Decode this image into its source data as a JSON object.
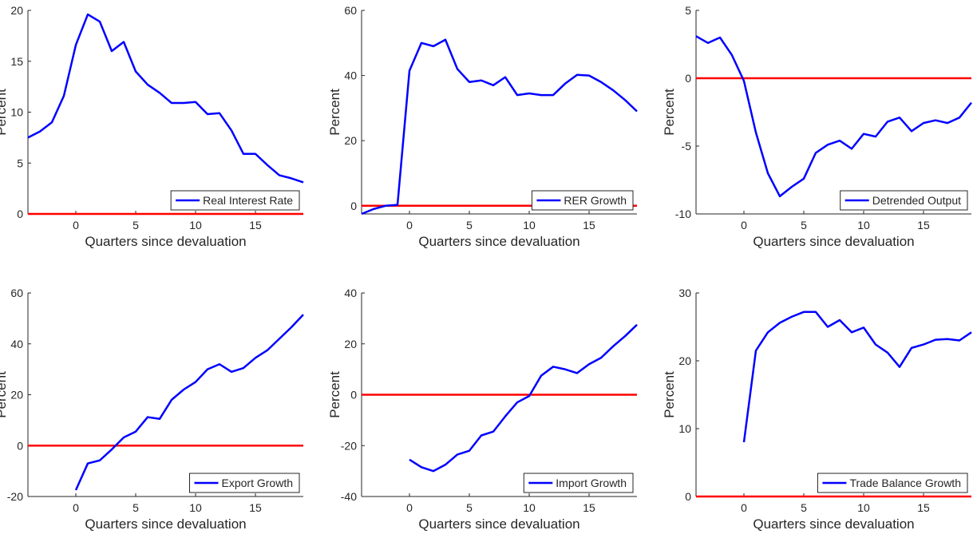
{
  "chart_data": [
    {
      "type": "line",
      "ylabel": "Percent",
      "xlabel": "Quarters since devaluation",
      "x": [
        -4,
        -3,
        -2,
        -1,
        0,
        1,
        2,
        3,
        4,
        5,
        6,
        7,
        8,
        9,
        10,
        11,
        12,
        13,
        14,
        15,
        16,
        17,
        18,
        19
      ],
      "series": [
        {
          "name": "Real Interest Rate",
          "color": "#0000ff",
          "values": [
            7.5,
            8.1,
            9.0,
            11.6,
            16.6,
            19.6,
            18.9,
            16.0,
            16.9,
            14.0,
            12.7,
            11.9,
            10.9,
            10.9,
            11.0,
            9.8,
            9.9,
            8.2,
            5.9,
            5.9,
            4.8,
            3.8,
            3.5,
            3.1
          ]
        }
      ],
      "reference_line": {
        "value": 0,
        "color": "#ff0000"
      },
      "xlim": [
        -4,
        19
      ],
      "xticks": [
        0,
        5,
        10,
        15
      ],
      "ylim": [
        0,
        20
      ],
      "yticks": [
        0,
        5,
        10,
        15,
        20
      ],
      "legend": "lower right"
    },
    {
      "type": "line",
      "ylabel": "Percent",
      "xlabel": "Quarters since devaluation",
      "x": [
        -4,
        -3,
        -2,
        -1,
        0,
        1,
        2,
        3,
        4,
        5,
        6,
        7,
        8,
        9,
        10,
        11,
        12,
        13,
        14,
        15,
        16,
        17,
        18,
        19
      ],
      "series": [
        {
          "name": "RER Growth",
          "color": "#0000ff",
          "values": [
            -2.5,
            -1,
            0,
            0.3,
            41.5,
            50,
            49,
            51,
            42,
            38,
            38.5,
            37,
            39.5,
            34,
            34.5,
            34,
            34,
            37.5,
            40.2,
            40,
            38,
            35.5,
            32.5,
            29
          ]
        }
      ],
      "reference_line": {
        "value": 0,
        "color": "#ff0000"
      },
      "xlim": [
        -4,
        19
      ],
      "xticks": [
        0,
        5,
        10,
        15
      ],
      "ylim": [
        -2.5,
        60
      ],
      "yticks": [
        0,
        20,
        40,
        60
      ],
      "legend": "lower right"
    },
    {
      "type": "line",
      "ylabel": "Percent",
      "xlabel": "Quarters since devaluation",
      "x": [
        -4,
        -3,
        -2,
        -1,
        0,
        1,
        2,
        3,
        4,
        5,
        6,
        7,
        8,
        9,
        10,
        11,
        12,
        13,
        14,
        15,
        16,
        17,
        18,
        19
      ],
      "series": [
        {
          "name": "Detrended Output",
          "color": "#0000ff",
          "values": [
            3.1,
            2.6,
            3.0,
            1.7,
            -0.2,
            -4,
            -7,
            -8.7,
            -8,
            -7.4,
            -5.5,
            -4.9,
            -4.6,
            -5.2,
            -4.1,
            -4.3,
            -3.2,
            -2.9,
            -3.9,
            -3.3,
            -3.1,
            -3.3,
            -2.9,
            -1.8
          ]
        }
      ],
      "reference_line": {
        "value": 0,
        "color": "#ff0000"
      },
      "xlim": [
        -4,
        19
      ],
      "xticks": [
        0,
        5,
        10,
        15
      ],
      "ylim": [
        -10,
        5
      ],
      "yticks": [
        -10,
        -5,
        0,
        5
      ],
      "legend": "lower right"
    },
    {
      "type": "line",
      "ylabel": "Percent",
      "xlabel": "Quarters since devaluation",
      "x": [
        0,
        1,
        2,
        3,
        4,
        5,
        6,
        7,
        8,
        9,
        10,
        11,
        12,
        13,
        14,
        15,
        16,
        17,
        18,
        19
      ],
      "series": [
        {
          "name": "Export Growth",
          "color": "#0000ff",
          "values": [
            -17.5,
            -7,
            -5.8,
            -1.5,
            3.2,
            5.5,
            11.2,
            10.5,
            18,
            22,
            25,
            30,
            32,
            29,
            30.5,
            34.5,
            37.5,
            42,
            46.5,
            51.5
          ]
        }
      ],
      "reference_line": {
        "value": 0,
        "color": "#ff0000"
      },
      "xlim": [
        -4,
        19
      ],
      "xticks": [
        0,
        5,
        10,
        15
      ],
      "ylim": [
        -20,
        60
      ],
      "yticks": [
        -20,
        0,
        20,
        40,
        60
      ],
      "legend": "lower right"
    },
    {
      "type": "line",
      "ylabel": "Percent",
      "xlabel": "Quarters since devaluation",
      "x": [
        0,
        1,
        2,
        3,
        4,
        5,
        6,
        7,
        8,
        9,
        10,
        11,
        12,
        13,
        14,
        15,
        16,
        17,
        18,
        19
      ],
      "series": [
        {
          "name": "Import Growth",
          "color": "#0000ff",
          "values": [
            -25.5,
            -28.5,
            -30,
            -27.5,
            -23.5,
            -22,
            -16,
            -14.5,
            -8.5,
            -3,
            -0.5,
            7.5,
            11,
            10,
            8.5,
            12,
            14.5,
            19,
            23,
            27.5
          ]
        }
      ],
      "reference_line": {
        "value": 0,
        "color": "#ff0000"
      },
      "xlim": [
        -4,
        19
      ],
      "xticks": [
        0,
        5,
        10,
        15
      ],
      "ylim": [
        -40,
        40
      ],
      "yticks": [
        -40,
        -20,
        0,
        20,
        40
      ],
      "legend": "lower right"
    },
    {
      "type": "line",
      "ylabel": "Percent",
      "xlabel": "Quarters since devaluation",
      "x": [
        0,
        1,
        2,
        3,
        4,
        5,
        6,
        7,
        8,
        9,
        10,
        11,
        12,
        13,
        14,
        15,
        16,
        17,
        18,
        19
      ],
      "series": [
        {
          "name": "Trade Balance Growth",
          "color": "#0000ff",
          "values": [
            8,
            21.5,
            24.2,
            25.6,
            26.5,
            27.2,
            27.2,
            25,
            26,
            24.2,
            24.9,
            22.4,
            21.2,
            19.1,
            21.9,
            22.4,
            23.1,
            23.2,
            23,
            24.2
          ]
        }
      ],
      "reference_line": {
        "value": 0,
        "color": "#ff0000"
      },
      "xlim": [
        -4,
        19
      ],
      "xticks": [
        0,
        5,
        10,
        15
      ],
      "ylim": [
        0,
        30
      ],
      "yticks": [
        0,
        10,
        20,
        30
      ],
      "legend": "lower right"
    }
  ]
}
